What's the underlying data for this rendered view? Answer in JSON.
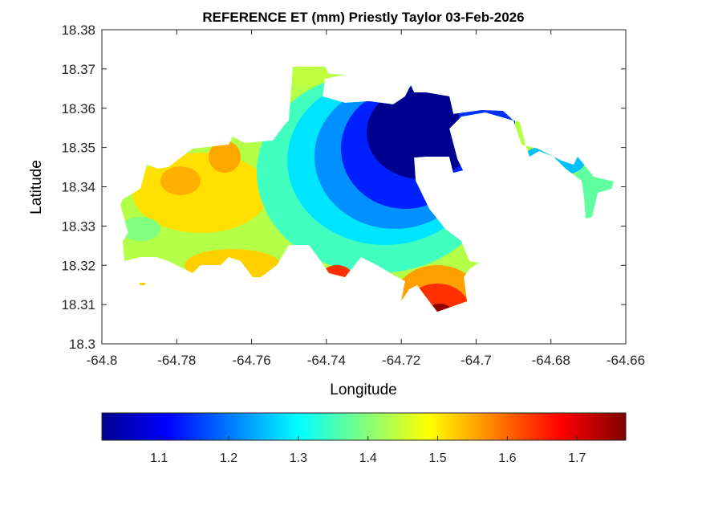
{
  "chart_data": {
    "type": "heatmap",
    "subtype": "filled-contour-map",
    "title": "REFERENCE ET (mm) Priestly Taylor 03-Feb-2026",
    "xlabel": "Longitude",
    "ylabel": "Latitude",
    "xlim": [
      -64.8,
      -64.66
    ],
    "ylim": [
      18.3,
      18.38
    ],
    "xticks": [
      -64.8,
      -64.78,
      -64.76,
      -64.74,
      -64.72,
      -64.7,
      -64.68,
      -64.66
    ],
    "yticks": [
      18.3,
      18.31,
      18.32,
      18.33,
      18.34,
      18.35,
      18.36,
      18.37,
      18.38
    ],
    "xtick_labels": [
      "-64.8",
      "-64.78",
      "-64.76",
      "-64.74",
      "-64.72",
      "-64.7",
      "-64.68",
      "-64.66"
    ],
    "ytick_labels": [
      "18.3",
      "18.31",
      "18.32",
      "18.33",
      "18.34",
      "18.35",
      "18.36",
      "18.37",
      "18.38"
    ],
    "grid": false,
    "colormap": "jet",
    "colorbar": {
      "location": "bottom",
      "range": [
        1.018,
        1.77
      ],
      "ticks": [
        1.1,
        1.2,
        1.3,
        1.4,
        1.5,
        1.6,
        1.7
      ],
      "tick_labels": [
        "1.1",
        "1.2",
        "1.3",
        "1.4",
        "1.5",
        "1.6",
        "1.7"
      ]
    },
    "regions": [
      {
        "area": "northeast-central",
        "approx_value": 1.02
      },
      {
        "area": "west",
        "approx_value": 1.5
      },
      {
        "area": "south-central coast",
        "approx_value": 1.75
      },
      {
        "area": "east arm tip",
        "approx_value": 1.38
      }
    ]
  }
}
